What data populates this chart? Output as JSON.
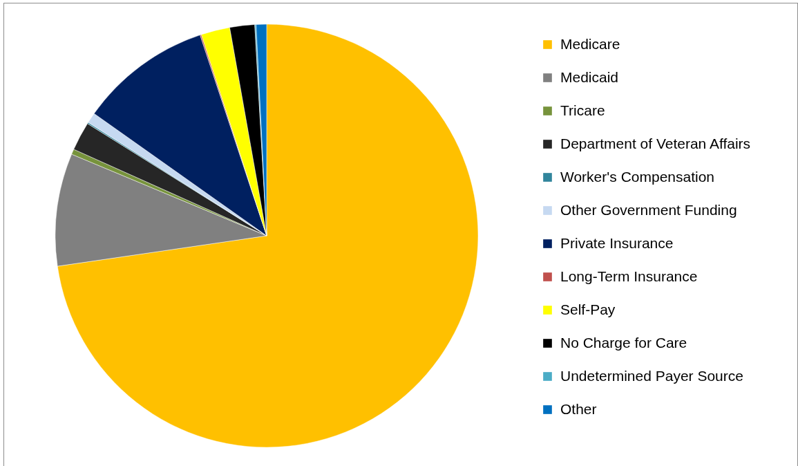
{
  "chart_data": {
    "type": "pie",
    "categories": [
      "Medicare",
      "Medicaid",
      "Tricare",
      "Department of Veteran Affairs",
      "Worker's Compensation",
      "Other Government Funding",
      "Private Insurance",
      "Long-Term Insurance",
      "Self-Pay",
      "No Charge for Care",
      "Undetermined Payer Source",
      "Other"
    ],
    "values": [
      72.7,
      8.6,
      0.4,
      2.2,
      0.1,
      0.8,
      10.1,
      0.1,
      2.2,
      1.9,
      0.1,
      0.8
    ],
    "colors": [
      "#ffc000",
      "#808080",
      "#77933c",
      "#262626",
      "#31859c",
      "#c6d9f1",
      "#002060",
      "#c0504d",
      "#ffff00",
      "#000000",
      "#4bacc6",
      "#0070c0"
    ],
    "legend": "right"
  }
}
